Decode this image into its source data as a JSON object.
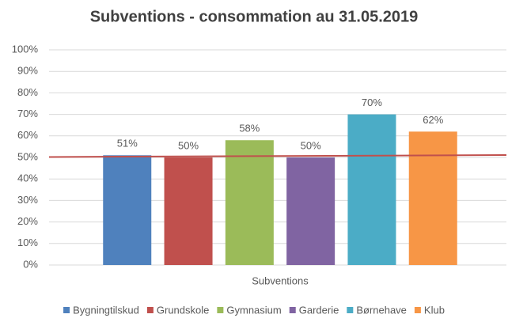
{
  "chart_data": {
    "type": "bar",
    "title": "Subventions - consommation au 31.05.2019",
    "categories": [
      "Subventions"
    ],
    "series": [
      {
        "name": "Bygningtilskud",
        "color": "#4f81bd",
        "values": [
          51
        ],
        "value_labels": [
          "51%"
        ]
      },
      {
        "name": "Grundskole",
        "color": "#c0504d",
        "values": [
          50
        ],
        "value_labels": [
          "50%"
        ]
      },
      {
        "name": "Gymnasium",
        "color": "#9bbb59",
        "values": [
          58
        ],
        "value_labels": [
          "58%"
        ]
      },
      {
        "name": "Garderie",
        "color": "#8064a2",
        "values": [
          50
        ],
        "value_labels": [
          "50%"
        ]
      },
      {
        "name": "Børnehave",
        "color": "#4bacc6",
        "values": [
          70
        ],
        "value_labels": [
          "70%"
        ]
      },
      {
        "name": "Klub",
        "color": "#f79646",
        "values": [
          62
        ],
        "value_labels": [
          "62%"
        ]
      }
    ],
    "reference_line": {
      "color": "#c0504d",
      "values": [
        50.2,
        51.1
      ]
    },
    "ylim": [
      0,
      100
    ],
    "yticks": [
      {
        "value": 0,
        "label": "0%"
      },
      {
        "value": 10,
        "label": "10%"
      },
      {
        "value": 20,
        "label": "20%"
      },
      {
        "value": 30,
        "label": "30%"
      },
      {
        "value": 40,
        "label": "40%"
      },
      {
        "value": 50,
        "label": "50%"
      },
      {
        "value": 60,
        "label": "60%"
      },
      {
        "value": 70,
        "label": "70%"
      },
      {
        "value": 80,
        "label": "80%"
      },
      {
        "value": 90,
        "label": "90%"
      },
      {
        "value": 100,
        "label": "100%"
      }
    ],
    "grid": true,
    "legend": "bottom"
  }
}
